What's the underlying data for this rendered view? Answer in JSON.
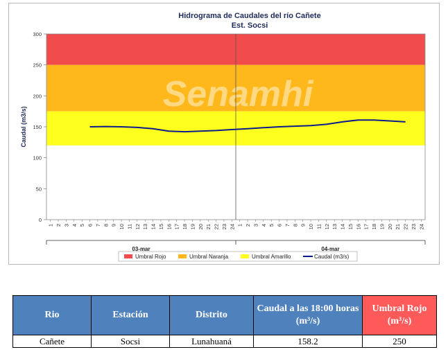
{
  "chart_data": {
    "type": "line",
    "title": "Hidrograma de Caudales  del río Cañete",
    "subtitle": "Est. Socsi",
    "ylabel": "Caudal  (m3/s)",
    "ylim": [
      0,
      300
    ],
    "yticks": [
      0,
      50,
      100,
      150,
      200,
      250,
      300
    ],
    "hours": [
      "1",
      "2",
      "3",
      "4",
      "5",
      "6",
      "7",
      "8",
      "9",
      "10",
      "11",
      "12",
      "13",
      "14",
      "15",
      "16",
      "17",
      "18",
      "19",
      "20",
      "21",
      "22",
      "23",
      "24"
    ],
    "days": [
      "03-mar",
      "04-mar"
    ],
    "watermark": "Senamhi",
    "bands": [
      {
        "name": "Umbral Rojo",
        "from": 250,
        "to": 300,
        "color": "#f24b4b"
      },
      {
        "name": "Umbral Naranja",
        "from": 175,
        "to": 250,
        "color": "#ffb81c"
      },
      {
        "name": "Umbral Amarillo",
        "from": 120,
        "to": 175,
        "color": "#ffff1e"
      }
    ],
    "series": [
      {
        "name": "Caudal (m3/s)",
        "color": "#0a1b8c",
        "points": [
          [
            6,
            150
          ],
          [
            8,
            150.5
          ],
          [
            10,
            150
          ],
          [
            12,
            149
          ],
          [
            14,
            147
          ],
          [
            16,
            143
          ],
          [
            18,
            142
          ],
          [
            20,
            143
          ],
          [
            22,
            144
          ],
          [
            24,
            145.5
          ],
          [
            26,
            147
          ],
          [
            28,
            148.5
          ],
          [
            30,
            150
          ],
          [
            32,
            151
          ],
          [
            34,
            152
          ],
          [
            36,
            154
          ],
          [
            38,
            158
          ],
          [
            40,
            161
          ],
          [
            42,
            161
          ],
          [
            44,
            159.5
          ],
          [
            46,
            158
          ]
        ]
      }
    ],
    "legend": [
      "Umbral Rojo",
      "Umbral Naranja",
      "Umbral Amarillo",
      "Caudal (m3/s)"
    ]
  },
  "table": {
    "headers": [
      "Rio",
      "Estación",
      "Distrito",
      "Caudal a las 18:00 horas (m³/s)",
      "Umbral Rojo (m³/s)"
    ],
    "row": [
      "Cañete",
      "Socsi",
      "Lunahuaná",
      "158.2",
      "250"
    ]
  }
}
